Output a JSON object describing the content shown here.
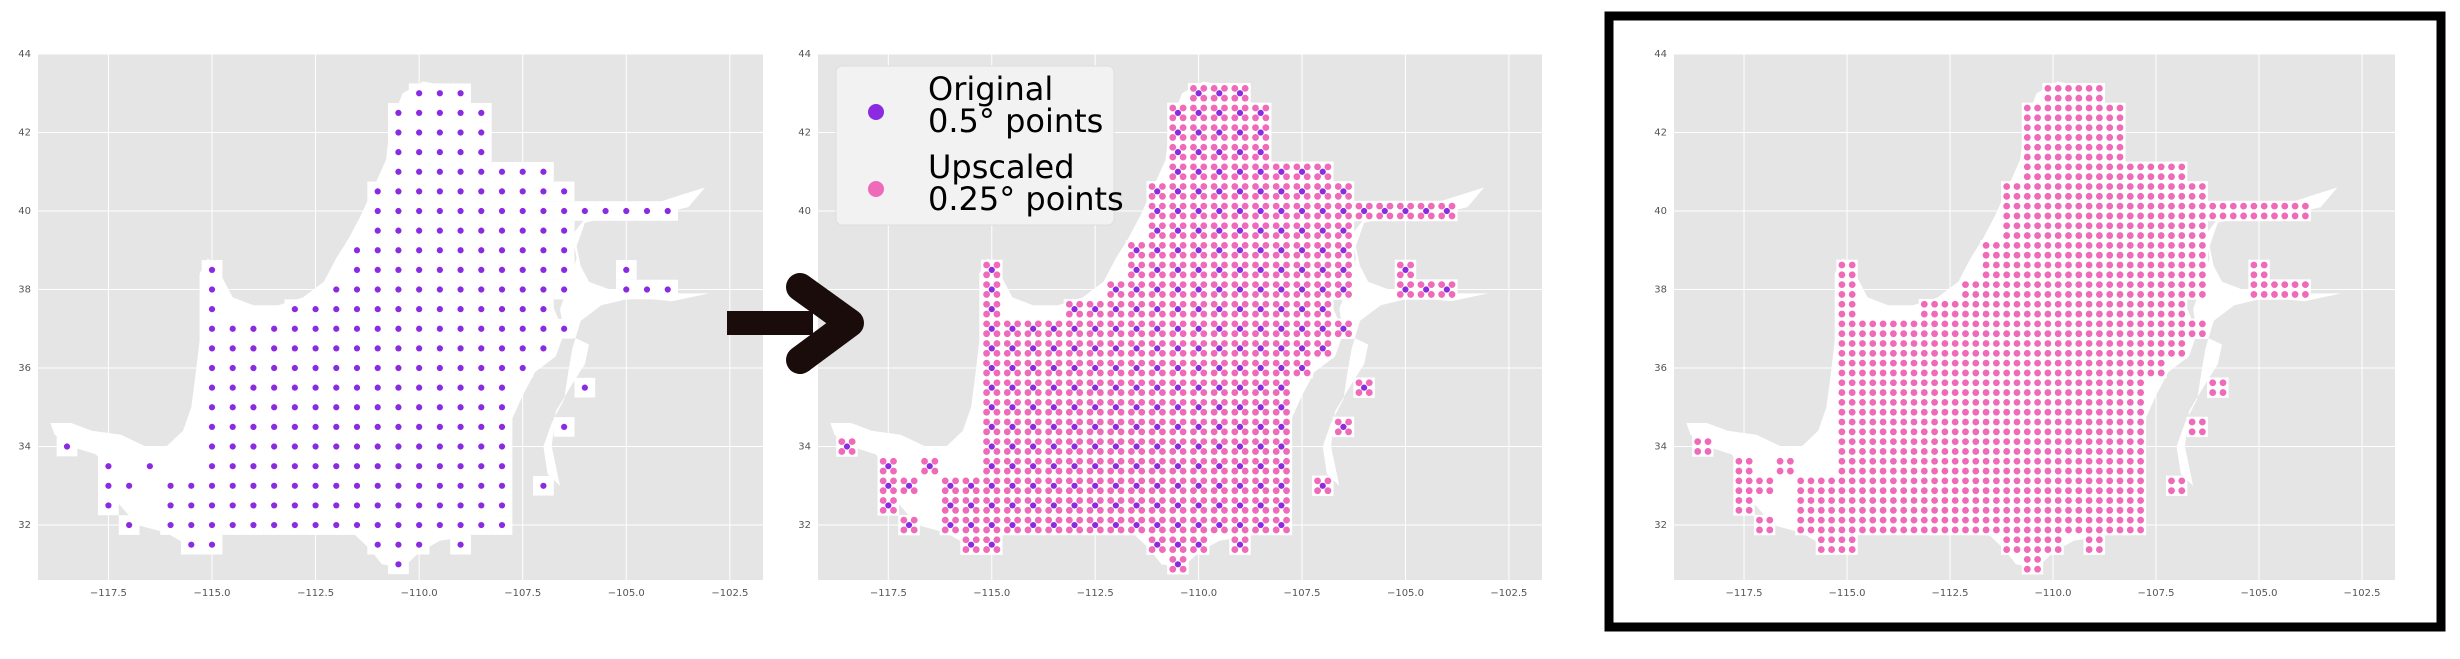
{
  "colors": {
    "panel_background": "#e5e5e5",
    "grid": "#ffffff",
    "land_mask": "#ffffff",
    "original_points": "#8a2be2",
    "upscaled_points": "#f06aba",
    "arrow": "#1a0c0a",
    "highlight_frame": "#000000",
    "legend_background": "#f2f2f2"
  },
  "arrow_icon": "right-arrow-icon",
  "legend": [
    {
      "key": "original",
      "line1": "Original",
      "line2": "0.5° points",
      "color": "#8a2be2"
    },
    {
      "key": "upscaled",
      "line1": "Upscaled",
      "line2": "0.25° points",
      "color": "#f06aba"
    }
  ],
  "chart_data": [
    {
      "type": "scatter",
      "panel": "original",
      "title": "",
      "xlabel": "",
      "ylabel": "",
      "xlim": [
        -119.2,
        -101.7
      ],
      "ylim": [
        30.6,
        44.0
      ],
      "grid": true,
      "xticks": [
        -117.5,
        -115.0,
        -112.5,
        -110.0,
        -107.5,
        -105.0,
        -102.5
      ],
      "xtick_labels": [
        "−117.5",
        "−115.0",
        "−112.5",
        "−110.0",
        "−107.5",
        "−105.0",
        "−102.5"
      ],
      "yticks": [
        32,
        34,
        36,
        38,
        40,
        42,
        44
      ],
      "ytick_labels": [
        "32",
        "34",
        "36",
        "38",
        "40",
        "42",
        "44"
      ],
      "series": [
        {
          "resolution_deg": 0.5,
          "points_by_latitude": [
            {
              "lat": 43.0,
              "lons": [
                -110,
                -109.5,
                -109
              ]
            },
            {
              "lat": 42.5,
              "lons": [
                -110.5,
                -110,
                -109.5,
                -109,
                -108.5
              ]
            },
            {
              "lat": 42.0,
              "lons": [
                -110.5,
                -110,
                -109.5,
                -109,
                -108.5
              ]
            },
            {
              "lat": 41.5,
              "lons": [
                -110.5,
                -110,
                -109.5,
                -109,
                -108.5
              ]
            },
            {
              "lat": 41.0,
              "lons": [
                -110.5,
                -110,
                -109.5,
                -109,
                -108.5,
                -108,
                -107.5,
                -107
              ]
            },
            {
              "lat": 40.5,
              "lons": [
                -111,
                -110.5,
                -110,
                -109.5,
                -109,
                -108.5,
                -108,
                -107.5,
                -107,
                -106.5
              ]
            },
            {
              "lat": 40.0,
              "lons": [
                -111,
                -110.5,
                -110,
                -109.5,
                -109,
                -108.5,
                -108,
                -107.5,
                -107,
                -106.5,
                -106,
                -105.5,
                -105,
                -104.5,
                -104
              ]
            },
            {
              "lat": 39.5,
              "lons": [
                -111,
                -110.5,
                -110,
                -109.5,
                -109,
                -108.5,
                -108,
                -107.5,
                -107,
                -106.5
              ]
            },
            {
              "lat": 39.0,
              "lons": [
                -111.5,
                -111,
                -110.5,
                -110,
                -109.5,
                -109,
                -108.5,
                -108,
                -107.5,
                -107,
                -106.5
              ]
            },
            {
              "lat": 38.5,
              "lons": [
                -115,
                -111.5,
                -111,
                -110.5,
                -110,
                -109.5,
                -109,
                -108.5,
                -108,
                -107.5,
                -107,
                -106.5,
                -105
              ]
            },
            {
              "lat": 38.0,
              "lons": [
                -115,
                -112,
                -111.5,
                -111,
                -110.5,
                -110,
                -109.5,
                -109,
                -108.5,
                -108,
                -107.5,
                -107,
                -106.5,
                -105,
                -104.5,
                -104
              ]
            },
            {
              "lat": 37.5,
              "lons": [
                -115,
                -113,
                -112.5,
                -112,
                -111.5,
                -111,
                -110.5,
                -110,
                -109.5,
                -109,
                -108.5,
                -108,
                -107.5,
                -107
              ]
            },
            {
              "lat": 37.0,
              "lons": [
                -115,
                -114.5,
                -114,
                -113.5,
                -113,
                -112.5,
                -112,
                -111.5,
                -111,
                -110.5,
                -110,
                -109.5,
                -109,
                -108.5,
                -108,
                -107.5,
                -107,
                -106.5
              ]
            },
            {
              "lat": 36.5,
              "lons": [
                -115,
                -114.5,
                -114,
                -113.5,
                -113,
                -112.5,
                -112,
                -111.5,
                -111,
                -110.5,
                -110,
                -109.5,
                -109,
                -108.5,
                -108,
                -107.5,
                -107
              ]
            },
            {
              "lat": 36.0,
              "lons": [
                -115,
                -114.5,
                -114,
                -113.5,
                -113,
                -112.5,
                -112,
                -111.5,
                -111,
                -110.5,
                -110,
                -109.5,
                -109,
                -108.5,
                -108,
                -107.5
              ]
            },
            {
              "lat": 35.5,
              "lons": [
                -115,
                -114.5,
                -114,
                -113.5,
                -113,
                -112.5,
                -112,
                -111.5,
                -111,
                -110.5,
                -110,
                -109.5,
                -109,
                -108.5,
                -108,
                -106
              ]
            },
            {
              "lat": 35.0,
              "lons": [
                -115,
                -114.5,
                -114,
                -113.5,
                -113,
                -112.5,
                -112,
                -111.5,
                -111,
                -110.5,
                -110,
                -109.5,
                -109,
                -108.5,
                -108
              ]
            },
            {
              "lat": 34.5,
              "lons": [
                -115,
                -114.5,
                -114,
                -113.5,
                -113,
                -112.5,
                -112,
                -111.5,
                -111,
                -110.5,
                -110,
                -109.5,
                -109,
                -108.5,
                -108,
                -106.5
              ]
            },
            {
              "lat": 34.0,
              "lons": [
                -118.5,
                -115,
                -114.5,
                -114,
                -113.5,
                -113,
                -112.5,
                -112,
                -111.5,
                -111,
                -110.5,
                -110,
                -109.5,
                -109,
                -108.5,
                -108
              ]
            },
            {
              "lat": 33.5,
              "lons": [
                -117.5,
                -116.5,
                -115,
                -114.5,
                -114,
                -113.5,
                -113,
                -112.5,
                -112,
                -111.5,
                -111,
                -110.5,
                -110,
                -109.5,
                -109,
                -108.5,
                -108
              ]
            },
            {
              "lat": 33.0,
              "lons": [
                -117.5,
                -117,
                -116,
                -115.5,
                -115,
                -114.5,
                -114,
                -113.5,
                -113,
                -112.5,
                -112,
                -111.5,
                -111,
                -110.5,
                -110,
                -109.5,
                -109,
                -108.5,
                -108,
                -107
              ]
            },
            {
              "lat": 32.5,
              "lons": [
                -117.5,
                -116,
                -115.5,
                -115,
                -114.5,
                -114,
                -113.5,
                -113,
                -112.5,
                -112,
                -111.5,
                -111,
                -110.5,
                -110,
                -109.5,
                -109,
                -108.5,
                -108
              ]
            },
            {
              "lat": 32.0,
              "lons": [
                -117,
                -116,
                -115.5,
                -115,
                -114.5,
                -114,
                -113.5,
                -113,
                -112.5,
                -112,
                -111.5,
                -111,
                -110.5,
                -110,
                -109.5,
                -109,
                -108.5,
                -108
              ]
            },
            {
              "lat": 31.5,
              "lons": [
                -115.5,
                -115,
                -111,
                -110.5,
                -110,
                -109
              ]
            },
            {
              "lat": 31.0,
              "lons": [
                -110.5
              ]
            }
          ]
        }
      ]
    },
    {
      "type": "scatter",
      "panel": "overlay",
      "title": "",
      "xlabel": "",
      "ylabel": "",
      "xlim": [
        -119.2,
        -101.7
      ],
      "ylim": [
        30.6,
        44.0
      ],
      "grid": true,
      "legend_position": "top-left",
      "xticks": [
        -117.5,
        -115.0,
        -112.5,
        -110.0,
        -107.5,
        -105.0,
        -102.5
      ],
      "xtick_labels": [
        "−117.5",
        "−115.0",
        "−112.5",
        "−110.0",
        "−107.5",
        "−105.0",
        "−102.5"
      ],
      "yticks": [
        32,
        34,
        36,
        38,
        40,
        42,
        44
      ],
      "ytick_labels": [
        "32",
        "34",
        "36",
        "38",
        "40",
        "42",
        "44"
      ],
      "series": [
        {
          "legend": "original",
          "resolution_deg": 0.5,
          "same_points_as_panel": "original"
        },
        {
          "legend": "upscaled",
          "resolution_deg": 0.25,
          "offsets_deg": [
            -0.125,
            0.125
          ],
          "derived_from": "original"
        }
      ]
    },
    {
      "type": "scatter",
      "panel": "upscaled",
      "title": "",
      "xlabel": "",
      "ylabel": "",
      "xlim": [
        -119.2,
        -101.7
      ],
      "ylim": [
        30.6,
        44.0
      ],
      "grid": true,
      "highlighted": true,
      "xticks": [
        -117.5,
        -115.0,
        -112.5,
        -110.0,
        -107.5,
        -105.0,
        -102.5
      ],
      "xtick_labels": [
        "−117.5",
        "−115.0",
        "−112.5",
        "−110.0",
        "−107.5",
        "−105.0",
        "−102.5"
      ],
      "yticks": [
        32,
        34,
        36,
        38,
        40,
        42,
        44
      ],
      "ytick_labels": [
        "32",
        "34",
        "36",
        "38",
        "40",
        "42",
        "44"
      ],
      "series": [
        {
          "legend": "upscaled",
          "resolution_deg": 0.25,
          "offsets_deg": [
            -0.125,
            0.125
          ],
          "derived_from": "original"
        }
      ]
    }
  ]
}
